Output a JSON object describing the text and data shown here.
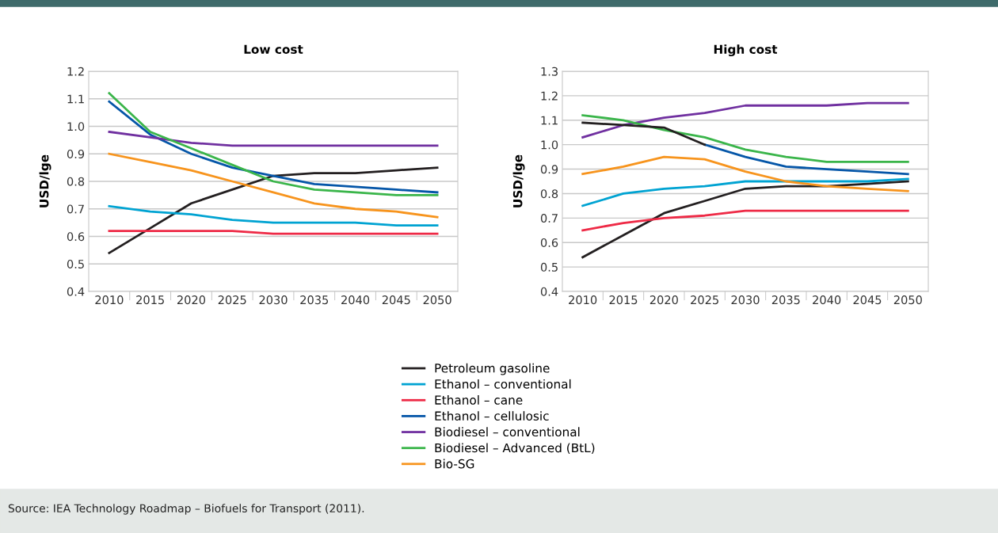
{
  "chart_data": [
    {
      "type": "line",
      "title": "Low cost",
      "ylabel": "USD/lge",
      "categories": [
        "2010",
        "2015",
        "2020",
        "2025",
        "2030",
        "2035",
        "2040",
        "2045",
        "2050"
      ],
      "ylim": [
        0.4,
        1.2
      ],
      "yticks": [
        0.4,
        0.5,
        0.6,
        0.7,
        0.8,
        0.9,
        {
          "value": 1.0,
          "label": "1.0"
        },
        1.1,
        1.2
      ],
      "grid": "y",
      "legend": "bottom",
      "line_style": "solid",
      "series": [
        {
          "name": "Petroleum gasoline",
          "color": "#231f20",
          "values": [
            0.54,
            0.63,
            0.72,
            0.77,
            0.82,
            0.83,
            0.83,
            0.84,
            0.85
          ]
        },
        {
          "name": "Ethanol – conventional",
          "color": "#00a3d2",
          "values": [
            0.71,
            0.69,
            0.68,
            0.66,
            0.65,
            0.65,
            0.65,
            0.64,
            0.64
          ]
        },
        {
          "name": "Ethanol – cane",
          "color": "#ee2a46",
          "values": [
            0.62,
            0.62,
            0.62,
            0.62,
            0.61,
            0.61,
            0.61,
            0.61,
            0.61
          ]
        },
        {
          "name": "Ethanol – cellulosic",
          "color": "#0556a8",
          "values": [
            1.09,
            0.97,
            0.9,
            0.85,
            0.82,
            0.79,
            0.78,
            0.77,
            0.76
          ]
        },
        {
          "name": "Biodiesel – conventional",
          "color": "#7030a0",
          "values": [
            0.98,
            0.96,
            0.94,
            0.93,
            0.93,
            0.93,
            0.93,
            0.93,
            0.93
          ]
        },
        {
          "name": "Biodiesel – Advanced (BtL)",
          "color": "#3ab54a",
          "values": [
            1.12,
            0.98,
            0.92,
            0.86,
            0.8,
            0.77,
            0.76,
            0.75,
            0.75
          ]
        },
        {
          "name": "Bio-SG",
          "color": "#f7941d",
          "values": [
            0.9,
            0.87,
            0.84,
            0.8,
            0.76,
            0.72,
            0.7,
            0.69,
            0.67
          ]
        }
      ],
      "annotations": [
        "Source: IEA Technology Roadmap – Biofuels for Transport (2011)."
      ]
    },
    {
      "type": "line",
      "title": "High cost",
      "ylabel": "USD/lge",
      "categories": [
        "2010",
        "2015",
        "2020",
        "2025",
        "2030",
        "2035",
        "2040",
        "2045",
        "2050"
      ],
      "ylim": [
        0.4,
        1.3
      ],
      "yticks": [
        0.4,
        0.5,
        0.6,
        0.7,
        0.8,
        0.9,
        {
          "value": 1.0,
          "label": "1.0"
        },
        1.1,
        1.2,
        1.3
      ],
      "grid": "y",
      "line_style": "solid",
      "series": [
        {
          "color": "#231f20",
          "values": [
            0.54,
            0.63,
            0.72,
            0.77,
            0.82,
            0.83,
            0.83,
            0.84,
            0.85
          ]
        },
        {
          "color": "#00a3d2",
          "values": [
            0.75,
            0.8,
            0.82,
            0.83,
            0.85,
            0.85,
            0.85,
            0.85,
            0.86
          ]
        },
        {
          "color": "#ee2a46",
          "values": [
            0.65,
            0.68,
            0.7,
            0.71,
            0.73,
            0.73,
            0.73,
            0.73,
            0.73
          ]
        },
        {
          "color": "#0556a8",
          "values": [
            null,
            null,
            null,
            1.0,
            0.95,
            0.91,
            0.9,
            0.89,
            0.88
          ]
        },
        {
          "color": "#7030a0",
          "values": [
            1.03,
            1.08,
            1.11,
            1.13,
            1.16,
            1.16,
            1.16,
            1.17,
            1.17
          ]
        },
        {
          "color": "#3ab54a",
          "values": [
            1.12,
            1.1,
            1.06,
            1.03,
            0.98,
            0.95,
            0.93,
            0.93,
            0.93
          ]
        },
        {
          "color": "#f7941d",
          "values": [
            0.88,
            0.91,
            0.95,
            0.94,
            0.89,
            0.85,
            0.83,
            0.82,
            0.81
          ]
        },
        {
          "color": "#231f20",
          "values": [
            1.09,
            1.08,
            1.07,
            1.0,
            null,
            null,
            null,
            null,
            null
          ]
        }
      ]
    }
  ]
}
